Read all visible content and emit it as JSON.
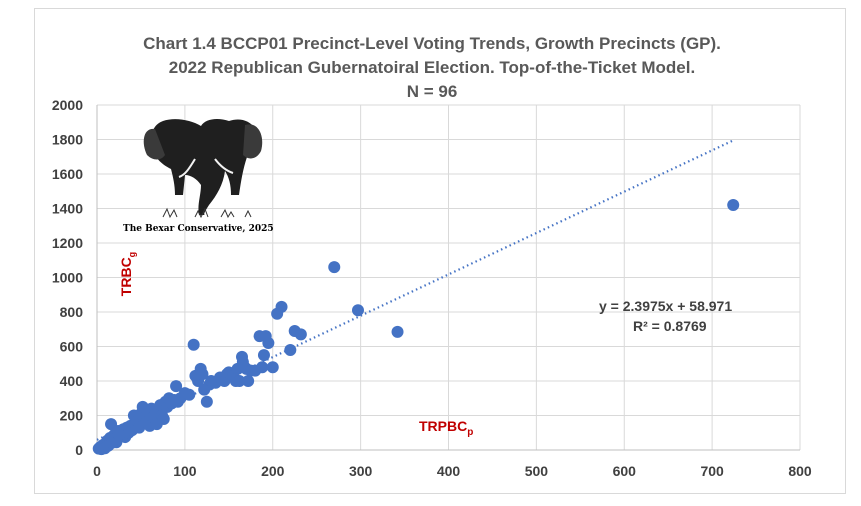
{
  "chart_data": {
    "type": "scatter",
    "title_lines": [
      "Chart 1.4 BCCP01 Precinct-Level Voting Trends, Growth Precincts (GP).",
      "2022 Republican Gubernatoiral Election. Top-of-the-Ticket Model.",
      "N = 96"
    ],
    "xlabel_main": "TRPBC",
    "xlabel_sub": "p",
    "ylabel_main": "TRBC",
    "ylabel_sub": "g",
    "xlim": [
      0,
      800
    ],
    "ylim": [
      0,
      2000
    ],
    "x_ticks": [
      0,
      100,
      200,
      300,
      400,
      500,
      600,
      700,
      800
    ],
    "y_ticks": [
      0,
      200,
      400,
      600,
      800,
      1000,
      1200,
      1400,
      1600,
      1800,
      2000
    ],
    "grid": true,
    "trendline": {
      "slope": 2.3975,
      "intercept": 58.971,
      "x_range": [
        0,
        725
      ]
    },
    "equation_text": "y = 2.3975x + 58.971",
    "r2_text": "R² = 0.8769",
    "series": [
      {
        "name": "Growth Precincts",
        "points": [
          [
            2,
            8
          ],
          [
            4,
            18
          ],
          [
            6,
            12
          ],
          [
            7,
            30
          ],
          [
            8,
            22
          ],
          [
            10,
            40
          ],
          [
            12,
            55
          ],
          [
            14,
            35
          ],
          [
            15,
            70
          ],
          [
            16,
            150
          ],
          [
            18,
            60
          ],
          [
            20,
            90
          ],
          [
            22,
            45
          ],
          [
            24,
            110
          ],
          [
            26,
            80
          ],
          [
            28,
            95
          ],
          [
            30,
            120
          ],
          [
            32,
            75
          ],
          [
            34,
            130
          ],
          [
            36,
            100
          ],
          [
            38,
            140
          ],
          [
            40,
            115
          ],
          [
            42,
            200
          ],
          [
            44,
            150
          ],
          [
            46,
            170
          ],
          [
            48,
            130
          ],
          [
            50,
            210
          ],
          [
            52,
            250
          ],
          [
            54,
            180
          ],
          [
            56,
            160
          ],
          [
            58,
            220
          ],
          [
            60,
            140
          ],
          [
            62,
            240
          ],
          [
            64,
            190
          ],
          [
            66,
            205
          ],
          [
            68,
            150
          ],
          [
            70,
            230
          ],
          [
            72,
            260
          ],
          [
            74,
            200
          ],
          [
            76,
            180
          ],
          [
            78,
            280
          ],
          [
            80,
            250
          ],
          [
            82,
            300
          ],
          [
            85,
            270
          ],
          [
            88,
            290
          ],
          [
            90,
            370
          ],
          [
            92,
            280
          ],
          [
            95,
            300
          ],
          [
            100,
            330
          ],
          [
            105,
            320
          ],
          [
            110,
            610
          ],
          [
            112,
            430
          ],
          [
            115,
            400
          ],
          [
            118,
            470
          ],
          [
            120,
            440
          ],
          [
            122,
            350
          ],
          [
            125,
            280
          ],
          [
            128,
            380
          ],
          [
            130,
            400
          ],
          [
            135,
            390
          ],
          [
            140,
            420
          ],
          [
            145,
            400
          ],
          [
            148,
            440
          ],
          [
            150,
            450
          ],
          [
            155,
            430
          ],
          [
            158,
            400
          ],
          [
            160,
            470
          ],
          [
            162,
            400
          ],
          [
            165,
            540
          ],
          [
            166,
            510
          ],
          [
            168,
            480
          ],
          [
            170,
            470
          ],
          [
            172,
            400
          ],
          [
            175,
            460
          ],
          [
            180,
            460
          ],
          [
            185,
            660
          ],
          [
            188,
            480
          ],
          [
            190,
            550
          ],
          [
            192,
            660
          ],
          [
            195,
            620
          ],
          [
            200,
            480
          ],
          [
            205,
            790
          ],
          [
            210,
            830
          ],
          [
            220,
            580
          ],
          [
            225,
            690
          ],
          [
            232,
            670
          ],
          [
            270,
            1060
          ],
          [
            297,
            810
          ],
          [
            342,
            685
          ],
          [
            724,
            1420
          ],
          [
            5,
            5
          ],
          [
            9,
            10
          ],
          [
            13,
            25
          ],
          [
            17,
            42
          ],
          [
            21,
            65
          ],
          [
            25,
            88
          ]
        ]
      }
    ]
  },
  "watermark_text": "The Bexar Conservative, 2025",
  "colors": {
    "point": "#4472c4",
    "axis_label": "#c00000",
    "title": "#595959"
  }
}
